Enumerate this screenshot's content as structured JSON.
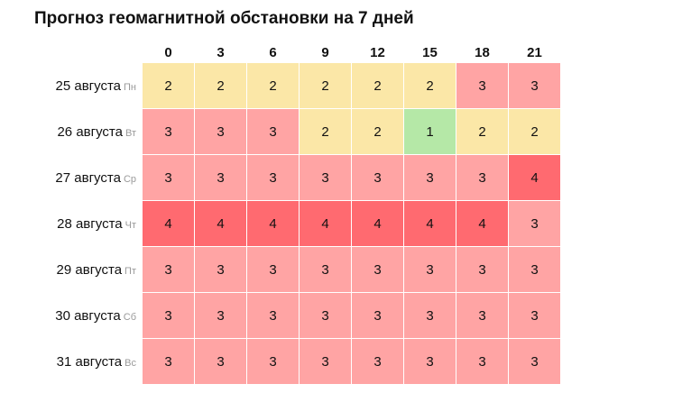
{
  "title": "Прогноз геомагнитной обстановки на 7 дней",
  "hours": [
    "0",
    "3",
    "6",
    "9",
    "12",
    "15",
    "18",
    "21"
  ],
  "level_colors": {
    "1": "#b5e8a7",
    "2": "#fbe7a7",
    "3": "#ffa4a4",
    "4": "#ff6a70"
  },
  "days": [
    {
      "date": "25 августа",
      "dow": "Пн",
      "values": [
        2,
        2,
        2,
        2,
        2,
        2,
        3,
        3
      ]
    },
    {
      "date": "26 августа",
      "dow": "Вт",
      "values": [
        3,
        3,
        3,
        2,
        2,
        1,
        2,
        2
      ]
    },
    {
      "date": "27 августа",
      "dow": "Ср",
      "values": [
        3,
        3,
        3,
        3,
        3,
        3,
        3,
        4
      ]
    },
    {
      "date": "28 августа",
      "dow": "Чт",
      "values": [
        4,
        4,
        4,
        4,
        4,
        4,
        4,
        3
      ]
    },
    {
      "date": "29 августа",
      "dow": "Пт",
      "values": [
        3,
        3,
        3,
        3,
        3,
        3,
        3,
        3
      ]
    },
    {
      "date": "30 августа",
      "dow": "Сб",
      "values": [
        3,
        3,
        3,
        3,
        3,
        3,
        3,
        3
      ]
    },
    {
      "date": "31 августа",
      "dow": "Вс",
      "values": [
        3,
        3,
        3,
        3,
        3,
        3,
        3,
        3
      ]
    }
  ]
}
